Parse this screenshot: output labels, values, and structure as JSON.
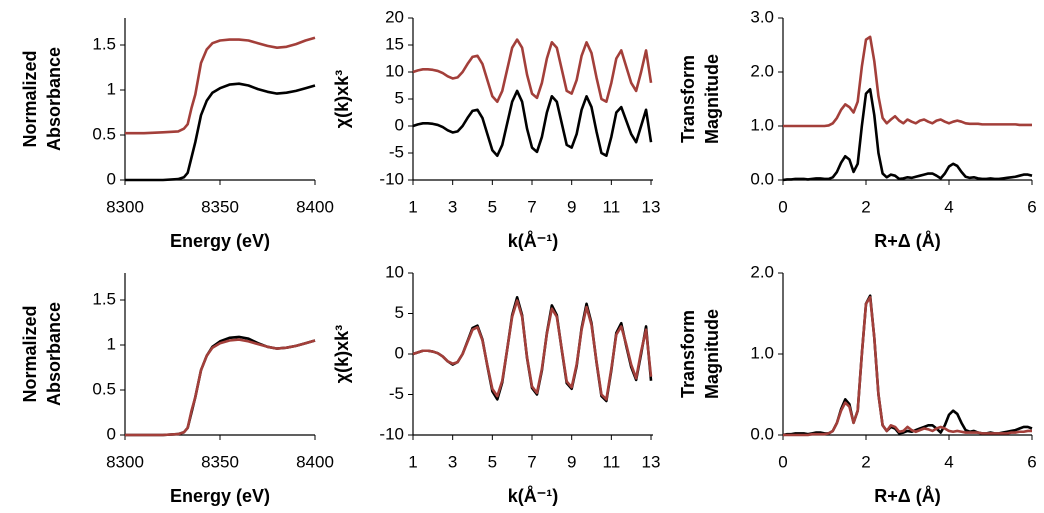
{
  "chart_data": [
    {
      "type": "line",
      "xlabel": "Energy (eV)",
      "ylabel": [
        "Normalized",
        "Absorbance"
      ],
      "xlim": [
        8300,
        8400
      ],
      "ylim": [
        0,
        1.8
      ],
      "xticks": [
        8300,
        8350,
        8400
      ],
      "yticks": [
        0,
        0.5,
        1,
        1.5
      ],
      "x": [
        8300,
        8310,
        8320,
        8328,
        8331,
        8333,
        8335,
        8337,
        8340,
        8343,
        8346,
        8350,
        8355,
        8360,
        8365,
        8370,
        8375,
        8380,
        8385,
        8390,
        8395,
        8400
      ],
      "series": [
        {
          "color": "#000000",
          "values": [
            0,
            0,
            0,
            0.01,
            0.03,
            0.08,
            0.25,
            0.42,
            0.72,
            0.88,
            0.97,
            1.02,
            1.06,
            1.07,
            1.05,
            1.01,
            0.98,
            0.96,
            0.97,
            0.99,
            1.02,
            1.05
          ]
        },
        {
          "color": "#a33f3a",
          "values": [
            0.52,
            0.52,
            0.53,
            0.54,
            0.57,
            0.62,
            0.8,
            0.95,
            1.3,
            1.45,
            1.52,
            1.55,
            1.56,
            1.56,
            1.55,
            1.52,
            1.49,
            1.47,
            1.48,
            1.51,
            1.55,
            1.58
          ]
        }
      ]
    },
    {
      "type": "line",
      "xlabel": "k(Å⁻¹)",
      "ylabel": [
        "χ(k)xk³"
      ],
      "xlim": [
        1,
        13.1
      ],
      "ylim": [
        -10,
        20
      ],
      "xticks": [
        1,
        3,
        5,
        7,
        9,
        11,
        13
      ],
      "yticks": [
        -10,
        -5,
        0,
        5,
        10,
        15,
        20
      ],
      "x": [
        1,
        1.25,
        1.5,
        1.75,
        2,
        2.25,
        2.5,
        2.75,
        3,
        3.25,
        3.5,
        3.75,
        4,
        4.25,
        4.5,
        4.75,
        5,
        5.25,
        5.5,
        5.75,
        6,
        6.25,
        6.5,
        6.75,
        7,
        7.25,
        7.5,
        7.75,
        8,
        8.25,
        8.5,
        8.75,
        9,
        9.25,
        9.5,
        9.75,
        10,
        10.25,
        10.5,
        10.75,
        11,
        11.25,
        11.5,
        11.75,
        12,
        12.25,
        12.5,
        12.75,
        13
      ],
      "series": [
        {
          "color": "#000000",
          "values": [
            0,
            0.3,
            0.5,
            0.5,
            0.4,
            0.2,
            -0.2,
            -0.8,
            -1.2,
            -1,
            0,
            1.5,
            2.8,
            3,
            1.5,
            -1.5,
            -4.5,
            -5.5,
            -3.5,
            0.5,
            4.5,
            6.5,
            4.5,
            -0.5,
            -4,
            -4.8,
            -2,
            2.5,
            5.5,
            4.5,
            0.5,
            -3.5,
            -4,
            -1.5,
            3,
            5.5,
            3.5,
            -1,
            -5,
            -5.5,
            -2,
            2.5,
            3.5,
            1,
            -1.5,
            -3,
            0,
            3,
            -3
          ]
        },
        {
          "color": "#a33f3a",
          "values": [
            10,
            10.3,
            10.5,
            10.5,
            10.4,
            10.2,
            9.8,
            9.2,
            8.8,
            9,
            10,
            11.5,
            12.8,
            13,
            11.5,
            8.5,
            5.5,
            4.5,
            6.5,
            10.5,
            14.5,
            16,
            14.5,
            9.5,
            6,
            5.2,
            8,
            12.5,
            15.5,
            14.5,
            10.5,
            6.5,
            6,
            8.5,
            13,
            15.5,
            13.5,
            9,
            5,
            4.5,
            8,
            12.5,
            14,
            11,
            8,
            6.5,
            10,
            14,
            8
          ]
        }
      ]
    },
    {
      "type": "line",
      "xlabel": "R+Δ (Å)",
      "ylabel": [
        "Transform",
        "Magnitude"
      ],
      "xlim": [
        0,
        6
      ],
      "ylim": [
        0,
        3
      ],
      "xticks": [
        0,
        2,
        4,
        6
      ],
      "yticks": [
        {
          "value": 0,
          "label": "0.0"
        },
        {
          "value": 1,
          "label": "1.0"
        },
        {
          "value": 2,
          "label": "2.0"
        },
        {
          "value": 3,
          "label": "3.0"
        }
      ],
      "x": [
        0,
        0.1,
        0.2,
        0.3,
        0.4,
        0.5,
        0.6,
        0.7,
        0.8,
        0.9,
        1,
        1.1,
        1.2,
        1.3,
        1.4,
        1.5,
        1.6,
        1.7,
        1.8,
        1.9,
        2,
        2.1,
        2.2,
        2.3,
        2.4,
        2.5,
        2.6,
        2.7,
        2.8,
        2.9,
        3,
        3.1,
        3.2,
        3.3,
        3.4,
        3.5,
        3.6,
        3.7,
        3.8,
        3.9,
        4,
        4.1,
        4.2,
        4.3,
        4.4,
        4.5,
        4.6,
        4.7,
        4.8,
        4.9,
        5,
        5.1,
        5.2,
        5.3,
        5.4,
        5.5,
        5.6,
        5.7,
        5.8,
        5.9,
        6
      ],
      "series": [
        {
          "color": "#000000",
          "values": [
            0,
            0.01,
            0.01,
            0.02,
            0.02,
            0.02,
            0.01,
            0.02,
            0.03,
            0.03,
            0.02,
            0.02,
            0.05,
            0.15,
            0.32,
            0.44,
            0.38,
            0.15,
            0.3,
            1.0,
            1.6,
            1.68,
            1.2,
            0.5,
            0.12,
            0.05,
            0.1,
            0.08,
            0.02,
            0.03,
            0.05,
            0.04,
            0.06,
            0.08,
            0.1,
            0.12,
            0.12,
            0.08,
            0.03,
            0.12,
            0.25,
            0.3,
            0.26,
            0.15,
            0.06,
            0.04,
            0.05,
            0.03,
            0.02,
            0.02,
            0.03,
            0.02,
            0.02,
            0.03,
            0.04,
            0.05,
            0.06,
            0.08,
            0.1,
            0.1,
            0.08
          ]
        },
        {
          "color": "#a33f3a",
          "values": [
            1,
            1,
            1,
            1,
            1,
            1,
            1,
            1,
            1,
            1,
            1,
            1.01,
            1.05,
            1.15,
            1.3,
            1.4,
            1.35,
            1.25,
            1.45,
            2.1,
            2.6,
            2.65,
            2.2,
            1.55,
            1.15,
            1.05,
            1.12,
            1.18,
            1.1,
            1.05,
            1.12,
            1.08,
            1.05,
            1.1,
            1.12,
            1.08,
            1.05,
            1.1,
            1.12,
            1.08,
            1.05,
            1.08,
            1.1,
            1.08,
            1.05,
            1.04,
            1.04,
            1.04,
            1.03,
            1.03,
            1.03,
            1.03,
            1.03,
            1.03,
            1.03,
            1.03,
            1.03,
            1.02,
            1.02,
            1.02,
            1.02
          ]
        }
      ]
    },
    {
      "type": "line",
      "xlabel": "Energy (eV)",
      "ylabel": [
        "Normalized",
        "Absorbance"
      ],
      "xlim": [
        8300,
        8400
      ],
      "ylim": [
        0,
        1.8
      ],
      "xticks": [
        8300,
        8350,
        8400
      ],
      "yticks": [
        0,
        0.5,
        1,
        1.5
      ],
      "x": [
        8300,
        8310,
        8320,
        8328,
        8331,
        8333,
        8335,
        8337,
        8340,
        8343,
        8346,
        8350,
        8355,
        8360,
        8365,
        8370,
        8375,
        8380,
        8385,
        8390,
        8395,
        8400
      ],
      "series": [
        {
          "color": "#000000",
          "values": [
            0,
            0,
            0,
            0.01,
            0.03,
            0.08,
            0.25,
            0.42,
            0.72,
            0.88,
            0.98,
            1.04,
            1.08,
            1.09,
            1.07,
            1.02,
            0.98,
            0.96,
            0.97,
            0.99,
            1.02,
            1.05
          ]
        },
        {
          "color": "#a33f3a",
          "values": [
            0,
            0,
            0,
            0.01,
            0.03,
            0.08,
            0.27,
            0.42,
            0.72,
            0.88,
            0.97,
            1.02,
            1.05,
            1.06,
            1.04,
            1.01,
            0.98,
            0.96,
            0.97,
            0.99,
            1.02,
            1.05
          ]
        }
      ]
    },
    {
      "type": "line",
      "xlabel": "k(Å⁻¹)",
      "ylabel": [
        "χ(k)xk³"
      ],
      "xlim": [
        1,
        13.1
      ],
      "ylim": [
        -10,
        10
      ],
      "xticks": [
        1,
        3,
        5,
        7,
        9,
        11,
        13
      ],
      "yticks": [
        -10,
        -5,
        0,
        5,
        10
      ],
      "x": [
        1,
        1.25,
        1.5,
        1.75,
        2,
        2.25,
        2.5,
        2.75,
        3,
        3.25,
        3.5,
        3.75,
        4,
        4.25,
        4.5,
        4.75,
        5,
        5.25,
        5.5,
        5.75,
        6,
        6.25,
        6.5,
        6.75,
        7,
        7.25,
        7.5,
        7.75,
        8,
        8.25,
        8.5,
        8.75,
        9,
        9.25,
        9.5,
        9.75,
        10,
        10.25,
        10.5,
        10.75,
        11,
        11.25,
        11.5,
        11.75,
        12,
        12.25,
        12.5,
        12.75,
        13
      ],
      "series": [
        {
          "color": "#000000",
          "values": [
            0,
            0.2,
            0.4,
            0.4,
            0.3,
            0.1,
            -0.3,
            -0.9,
            -1.3,
            -1,
            0,
            1.6,
            3.2,
            3.5,
            1.8,
            -1.5,
            -4.6,
            -5.6,
            -3.5,
            0.6,
            4.8,
            7,
            4.8,
            -0.5,
            -4.2,
            -5,
            -2,
            2.6,
            6,
            4.8,
            0.5,
            -3.6,
            -4.3,
            -1.5,
            3.2,
            6.2,
            3.8,
            -1,
            -5.2,
            -5.8,
            -2,
            2.6,
            3.8,
            1,
            -1.6,
            -3.2,
            0,
            3.4,
            -3.3
          ]
        },
        {
          "color": "#a33f3a",
          "values": [
            0,
            0.2,
            0.4,
            0.4,
            0.3,
            0.1,
            -0.3,
            -0.9,
            -1.2,
            -1,
            0,
            1.5,
            3,
            3.3,
            1.7,
            -1.4,
            -4.3,
            -5.2,
            -3.3,
            0.6,
            4.6,
            6.6,
            4.6,
            -0.4,
            -4,
            -4.8,
            -1.8,
            2.5,
            5.6,
            4.6,
            0.6,
            -3.4,
            -4.1,
            -1.3,
            3,
            5.8,
            3.6,
            -0.9,
            -5,
            -5.6,
            -1.8,
            2.4,
            3.4,
            1.2,
            -1.3,
            -3,
            0.3,
            3,
            -2.8
          ]
        }
      ]
    },
    {
      "type": "line",
      "xlabel": "R+Δ (Å)",
      "ylabel": [
        "Transform",
        "Magnitude"
      ],
      "xlim": [
        0,
        6
      ],
      "ylim": [
        0,
        2
      ],
      "xticks": [
        0,
        2,
        4,
        6
      ],
      "yticks": [
        {
          "value": 0,
          "label": "0.0"
        },
        {
          "value": 1,
          "label": "1.0"
        },
        {
          "value": 2,
          "label": "2.0"
        }
      ],
      "x": [
        0,
        0.1,
        0.2,
        0.3,
        0.4,
        0.5,
        0.6,
        0.7,
        0.8,
        0.9,
        1,
        1.1,
        1.2,
        1.3,
        1.4,
        1.5,
        1.6,
        1.7,
        1.8,
        1.9,
        2,
        2.1,
        2.2,
        2.3,
        2.4,
        2.5,
        2.6,
        2.7,
        2.8,
        2.9,
        3,
        3.1,
        3.2,
        3.3,
        3.4,
        3.5,
        3.6,
        3.7,
        3.8,
        3.9,
        4,
        4.1,
        4.2,
        4.3,
        4.4,
        4.5,
        4.6,
        4.7,
        4.8,
        4.9,
        5,
        5.1,
        5.2,
        5.3,
        5.4,
        5.5,
        5.6,
        5.7,
        5.8,
        5.9,
        6
      ],
      "series": [
        {
          "color": "#000000",
          "values": [
            0,
            0.01,
            0.01,
            0.02,
            0.02,
            0.02,
            0.01,
            0.02,
            0.03,
            0.03,
            0.02,
            0.02,
            0.05,
            0.15,
            0.32,
            0.44,
            0.38,
            0.15,
            0.3,
            1.0,
            1.62,
            1.72,
            1.2,
            0.5,
            0.12,
            0.05,
            0.1,
            0.08,
            0.02,
            0.03,
            0.05,
            0.04,
            0.06,
            0.08,
            0.1,
            0.12,
            0.12,
            0.08,
            0.03,
            0.12,
            0.25,
            0.3,
            0.26,
            0.15,
            0.06,
            0.04,
            0.05,
            0.03,
            0.02,
            0.02,
            0.03,
            0.02,
            0.02,
            0.03,
            0.04,
            0.05,
            0.06,
            0.08,
            0.1,
            0.1,
            0.08
          ]
        },
        {
          "color": "#a33f3a",
          "values": [
            0,
            0,
            0,
            0,
            0,
            0,
            0,
            0.01,
            0.01,
            0.01,
            0.01,
            0.02,
            0.05,
            0.15,
            0.3,
            0.4,
            0.35,
            0.15,
            0.3,
            1.0,
            1.62,
            1.7,
            1.2,
            0.5,
            0.12,
            0.05,
            0.12,
            0.1,
            0.04,
            0.05,
            0.1,
            0.06,
            0.04,
            0.06,
            0.08,
            0.07,
            0.05,
            0.08,
            0.1,
            0.08,
            0.05,
            0.04,
            0.05,
            0.04,
            0.03,
            0.03,
            0.03,
            0.03,
            0.02,
            0.02,
            0.02,
            0.02,
            0.02,
            0.02,
            0.02,
            0.03,
            0.03,
            0.04,
            0.04,
            0.05,
            0.05
          ]
        }
      ]
    }
  ]
}
